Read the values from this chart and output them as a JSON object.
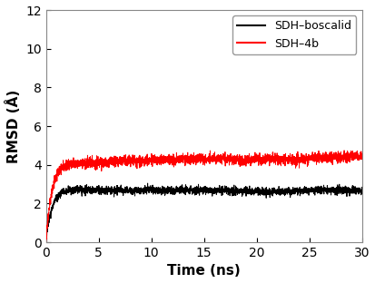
{
  "title": "",
  "xlabel": "Time (ns)",
  "ylabel": "RMSD (Å)",
  "xlim": [
    0,
    30
  ],
  "ylim": [
    0,
    12
  ],
  "xticks": [
    0,
    5,
    10,
    15,
    20,
    25,
    30
  ],
  "yticks": [
    0,
    2,
    4,
    6,
    8,
    10,
    12
  ],
  "legend_labels": [
    "SDH–boscalid",
    "SDH–4b"
  ],
  "legend_colors": [
    "black",
    "red"
  ],
  "line_width": 0.7,
  "n_points": 3000,
  "black_plateau": 2.75,
  "red_plateau": 4.05,
  "rise_rate": 1.8,
  "black_slow_noise": 0.0018,
  "red_slow_noise": 0.0028,
  "black_fast_noise": 0.1,
  "red_fast_noise": 0.13,
  "black_drift": 0.022,
  "red_drift": 0.06,
  "black_seed": 7,
  "red_seed": 99,
  "background_color": "#ffffff",
  "legend_fontsize": 9,
  "axis_label_fontsize": 11,
  "tick_labelsize": 10
}
